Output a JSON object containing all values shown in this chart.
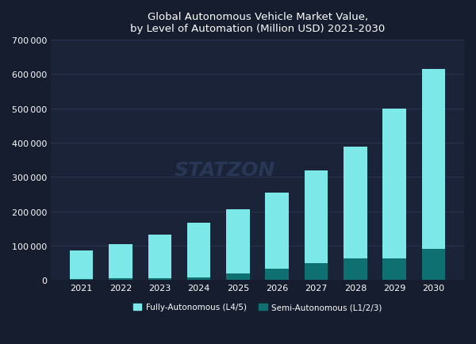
{
  "title_line1": "Global Autonomous Vehicle Market Value,",
  "title_line2": "by Level of Automation (Million USD) 2021-2030",
  "years": [
    2021,
    2022,
    2023,
    2024,
    2025,
    2026,
    2027,
    2028,
    2029,
    2030
  ],
  "semi_autonomous": [
    3000,
    5000,
    6000,
    8000,
    20000,
    33000,
    48000,
    63000,
    62000,
    90000
  ],
  "fully_autonomous": [
    82000,
    100000,
    127000,
    158000,
    185000,
    222000,
    272000,
    325000,
    438000,
    525000
  ],
  "fully_color": "#7de8e8",
  "semi_color": "#0e7070",
  "background_color": "#151d2e",
  "plot_bg_color": "#1a2338",
  "grid_color": "#2a3450",
  "text_color": "#ffffff",
  "ylim": [
    0,
    700000
  ],
  "yticks": [
    0,
    100000,
    200000,
    300000,
    400000,
    500000,
    600000,
    700000
  ],
  "legend_fully": "Fully-Autonomous (L4/5)",
  "legend_semi": "Semi-Autonomous (L1/2/3)",
  "watermark": "STATZON"
}
